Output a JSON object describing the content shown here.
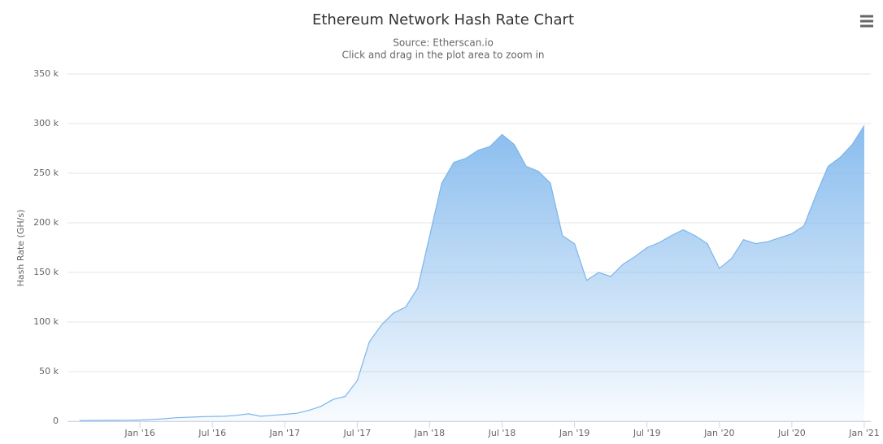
{
  "chart_data": {
    "type": "area",
    "title": "Ethereum Network Hash Rate Chart",
    "subtitle": "Source: Etherscan.io",
    "instruction": "Click and drag in the plot area to zoom in",
    "y_label": "Hash Rate (GH/s)",
    "color": "#7cb5ec",
    "grid": true,
    "x": [
      "2015-08",
      "2015-09",
      "2015-10",
      "2015-11",
      "2015-12",
      "2016-01",
      "2016-02",
      "2016-03",
      "2016-04",
      "2016-05",
      "2016-06",
      "2016-07",
      "2016-08",
      "2016-09",
      "2016-10",
      "2016-11",
      "2016-12",
      "2017-01",
      "2017-02",
      "2017-03",
      "2017-04",
      "2017-05",
      "2017-06",
      "2017-07",
      "2017-08",
      "2017-09",
      "2017-10",
      "2017-11",
      "2017-12",
      "2018-01",
      "2018-02",
      "2018-03",
      "2018-04",
      "2018-05",
      "2018-06",
      "2018-07",
      "2018-08",
      "2018-09",
      "2018-10",
      "2018-11",
      "2018-12",
      "2019-01",
      "2019-02",
      "2019-03",
      "2019-04",
      "2019-05",
      "2019-06",
      "2019-07",
      "2019-08",
      "2019-09",
      "2019-10",
      "2019-11",
      "2019-12",
      "2020-01",
      "2020-02",
      "2020-03",
      "2020-04",
      "2020-05",
      "2020-06",
      "2020-07",
      "2020-08",
      "2020-09",
      "2020-10",
      "2020-11",
      "2020-12",
      "2021-01"
    ],
    "values": [
      500,
      700,
      800,
      900,
      1000,
      1200,
      1800,
      2500,
      3500,
      4000,
      4500,
      4800,
      5000,
      6000,
      7500,
      5000,
      6000,
      7000,
      8000,
      11000,
      15000,
      22000,
      25000,
      41000,
      80000,
      97000,
      109000,
      115000,
      134000,
      187000,
      240000,
      261000,
      265000,
      273000,
      277000,
      289000,
      279000,
      257000,
      252000,
      240000,
      187000,
      179000,
      142000,
      150000,
      146000,
      158000,
      166000,
      175000,
      180000,
      187000,
      193000,
      187000,
      179000,
      154000,
      164000,
      183000,
      179000,
      181000,
      185000,
      189000,
      197000,
      228000,
      257000,
      266000,
      279000,
      298000
    ],
    "xlim": [
      "2015-07",
      "2021-01"
    ],
    "xticks": [
      {
        "value": "2016-01",
        "label": "Jan '16"
      },
      {
        "value": "2016-07",
        "label": "Jul '16"
      },
      {
        "value": "2017-01",
        "label": "Jan '17"
      },
      {
        "value": "2017-07",
        "label": "Jul '17"
      },
      {
        "value": "2018-01",
        "label": "Jan '18"
      },
      {
        "value": "2018-07",
        "label": "Jul '18"
      },
      {
        "value": "2019-01",
        "label": "Jan '19"
      },
      {
        "value": "2019-07",
        "label": "Jul '19"
      },
      {
        "value": "2020-01",
        "label": "Jan '20"
      },
      {
        "value": "2020-07",
        "label": "Jul '20"
      },
      {
        "value": "2021-01",
        "label": "Jan '21"
      }
    ],
    "ylim": [
      0,
      350000
    ],
    "yticks": [
      0,
      {
        "value": 50000,
        "label": "50 k"
      },
      {
        "value": 100000,
        "label": "100 k"
      },
      {
        "value": 150000,
        "label": "150 k"
      },
      {
        "value": 200000,
        "label": "200 k"
      },
      {
        "value": 250000,
        "label": "250 k"
      },
      {
        "value": 300000,
        "label": "300 k"
      },
      {
        "value": 350000,
        "label": "350 k"
      }
    ]
  }
}
